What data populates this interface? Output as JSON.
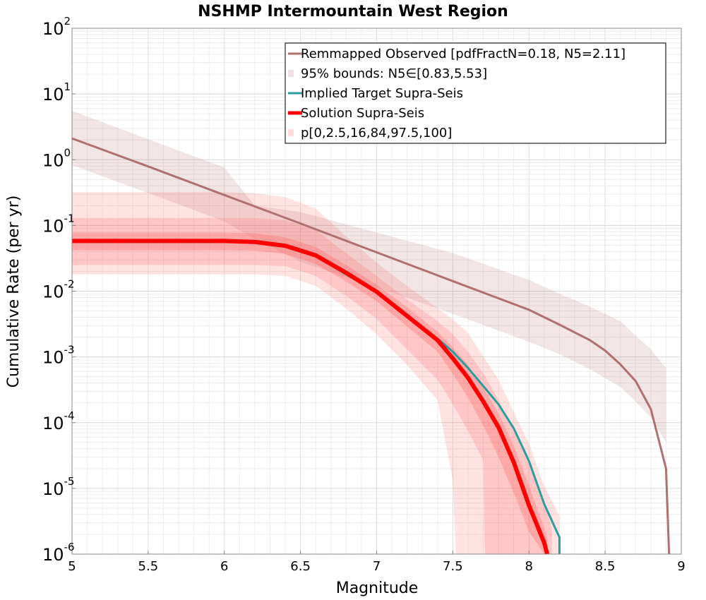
{
  "chart_data": {
    "type": "line",
    "title": "NSHMP Intermountain West Region",
    "xlabel": "Magnitude",
    "ylabel": "Cumulative Rate (per yr)",
    "xlim": [
      5,
      9
    ],
    "ylim": [
      1e-06,
      100
    ],
    "yscale": "log",
    "grid": true,
    "legend_position": "top-right",
    "x_ticks": [
      "5",
      "5.5",
      "6",
      "6.5",
      "7",
      "7.5",
      "8",
      "8.5",
      "9"
    ],
    "y_ticks": [
      {
        "base": "10",
        "exp": "-6"
      },
      {
        "base": "10",
        "exp": "-5"
      },
      {
        "base": "10",
        "exp": "-4"
      },
      {
        "base": "10",
        "exp": "-3"
      },
      {
        "base": "10",
        "exp": "-2"
      },
      {
        "base": "10",
        "exp": "-1"
      },
      {
        "base": "10",
        "exp": "0"
      },
      {
        "base": "10",
        "exp": "1"
      },
      {
        "base": "10",
        "exp": "2"
      }
    ],
    "series": [
      {
        "name": "Remmapped Observed [pdfFractN=0.18, N5=2.11]",
        "color": "#b07070",
        "x": [
          5.0,
          5.5,
          6.0,
          6.5,
          7.0,
          7.5,
          8.0,
          8.2,
          8.4,
          8.5,
          8.6,
          8.7,
          8.8,
          8.9,
          8.92
        ],
        "y": [
          2.11,
          0.79,
          0.29,
          0.107,
          0.039,
          0.0142,
          0.0052,
          0.0031,
          0.0018,
          0.00125,
          0.00077,
          0.00043,
          0.00016,
          2e-05,
          1e-06
        ]
      },
      {
        "name": "95% bounds: N5∈[0.83,5.53]",
        "color": "#b07070",
        "band": true,
        "x": [
          5.0,
          5.5,
          6.0,
          6.2,
          6.5,
          7.0,
          7.5,
          8.0,
          8.2,
          8.4,
          8.6,
          8.7,
          8.8,
          8.9,
          8.9
        ],
        "lower": [
          0.83,
          0.31,
          0.115,
          0.062,
          0.028,
          0.0115,
          0.0045,
          0.0017,
          0.0011,
          0.00065,
          0.00035,
          0.00021,
          0.00012,
          5e-05,
          5e-05
        ],
        "upper": [
          5.53,
          2.05,
          0.76,
          0.2,
          0.16,
          0.078,
          0.038,
          0.0148,
          0.0092,
          0.0058,
          0.0035,
          0.0021,
          0.0013,
          0.00068,
          0.00068
        ]
      },
      {
        "name": "Implied Target Supra-Seis",
        "color": "#2a9d9d",
        "x": [
          5.0,
          5.5,
          6.0,
          6.2,
          6.4,
          6.6,
          6.8,
          7.0,
          7.2,
          7.4,
          7.5,
          7.6,
          7.7,
          7.8,
          7.9,
          8.0,
          8.1,
          8.2,
          8.2
        ],
        "y": [
          0.058,
          0.058,
          0.058,
          0.056,
          0.048,
          0.034,
          0.018,
          0.0095,
          0.0043,
          0.0019,
          0.0012,
          0.00068,
          0.00036,
          0.00019,
          8.2e-05,
          2.6e-05,
          5.8e-06,
          1.8e-06,
          1e-06
        ]
      },
      {
        "name": "Solution Supra-Seis",
        "color": "#ff0000",
        "x": [
          5.0,
          5.5,
          6.0,
          6.2,
          6.4,
          6.6,
          6.8,
          7.0,
          7.2,
          7.4,
          7.5,
          7.6,
          7.7,
          7.8,
          7.9,
          8.0,
          8.1,
          8.12
        ],
        "y": [
          0.058,
          0.058,
          0.058,
          0.056,
          0.049,
          0.035,
          0.019,
          0.0098,
          0.0042,
          0.0018,
          0.00095,
          0.00048,
          0.00021,
          8.5e-05,
          2.5e-05,
          5.5e-06,
          1.5e-06,
          1e-06
        ]
      },
      {
        "name": "p[0,2.5,16,84,97.5,100]",
        "color": "#ff0000",
        "band": true,
        "percentile_bands": [
          {
            "label": "0-100",
            "x": [
              5.0,
              6.0,
              6.2,
              6.4,
              6.6,
              6.8,
              7.0,
              7.2,
              7.4,
              7.5,
              7.52,
              7.6,
              7.8,
              8.0,
              8.1,
              8.2,
              8.2
            ],
            "lower": [
              0.018,
              0.018,
              0.018,
              0.017,
              0.012,
              0.0055,
              0.0022,
              0.00075,
              0.00022,
              1.3e-05,
              1e-06,
              1e-06,
              1e-06,
              1e-06,
              1e-06,
              1e-06,
              1e-06
            ],
            "upper": [
              0.32,
              0.32,
              0.31,
              0.27,
              0.18,
              0.068,
              0.027,
              0.012,
              0.0055,
              0.0037,
              0.0034,
              0.0023,
              0.00045,
              4.8e-05,
              1.1e-05,
              3.8e-06,
              1e-06
            ]
          },
          {
            "label": "2.5-97.5",
            "x": [
              5.0,
              6.0,
              6.2,
              6.4,
              6.6,
              6.8,
              7.0,
              7.2,
              7.4,
              7.5,
              7.6,
              7.7,
              7.71,
              7.8,
              8.0,
              8.1,
              8.15
            ],
            "lower": [
              0.025,
              0.025,
              0.025,
              0.024,
              0.017,
              0.0085,
              0.0038,
              0.0013,
              0.00045,
              0.00019,
              7.5e-05,
              2.7e-05,
              1e-06,
              1e-06,
              1e-06,
              1e-06,
              1e-06
            ],
            "upper": [
              0.13,
              0.13,
              0.13,
              0.12,
              0.085,
              0.038,
              0.017,
              0.0075,
              0.0035,
              0.0022,
              0.0012,
              0.00056,
              0.00052,
              0.00022,
              2.5e-05,
              6e-06,
              2.5e-06
            ]
          },
          {
            "label": "16-84",
            "x": [
              5.0,
              6.0,
              6.2,
              6.4,
              6.6,
              6.8,
              7.0,
              7.2,
              7.4,
              7.5,
              7.6,
              7.7,
              7.8,
              7.9,
              8.0,
              8.1,
              8.12
            ],
            "lower": [
              0.042,
              0.042,
              0.041,
              0.037,
              0.026,
              0.014,
              0.007,
              0.0029,
              0.0012,
              0.00055,
              0.00024,
              9e-05,
              3e-05,
              8.5e-06,
              2.2e-06,
              1e-06,
              1e-06
            ],
            "upper": [
              0.078,
              0.078,
              0.076,
              0.066,
              0.047,
              0.025,
              0.0125,
              0.0057,
              0.0024,
              0.0014,
              0.00075,
              0.00034,
              0.00014,
              4.5e-05,
              1.1e-05,
              2.5e-06,
              1.8e-06
            ]
          }
        ]
      }
    ]
  }
}
